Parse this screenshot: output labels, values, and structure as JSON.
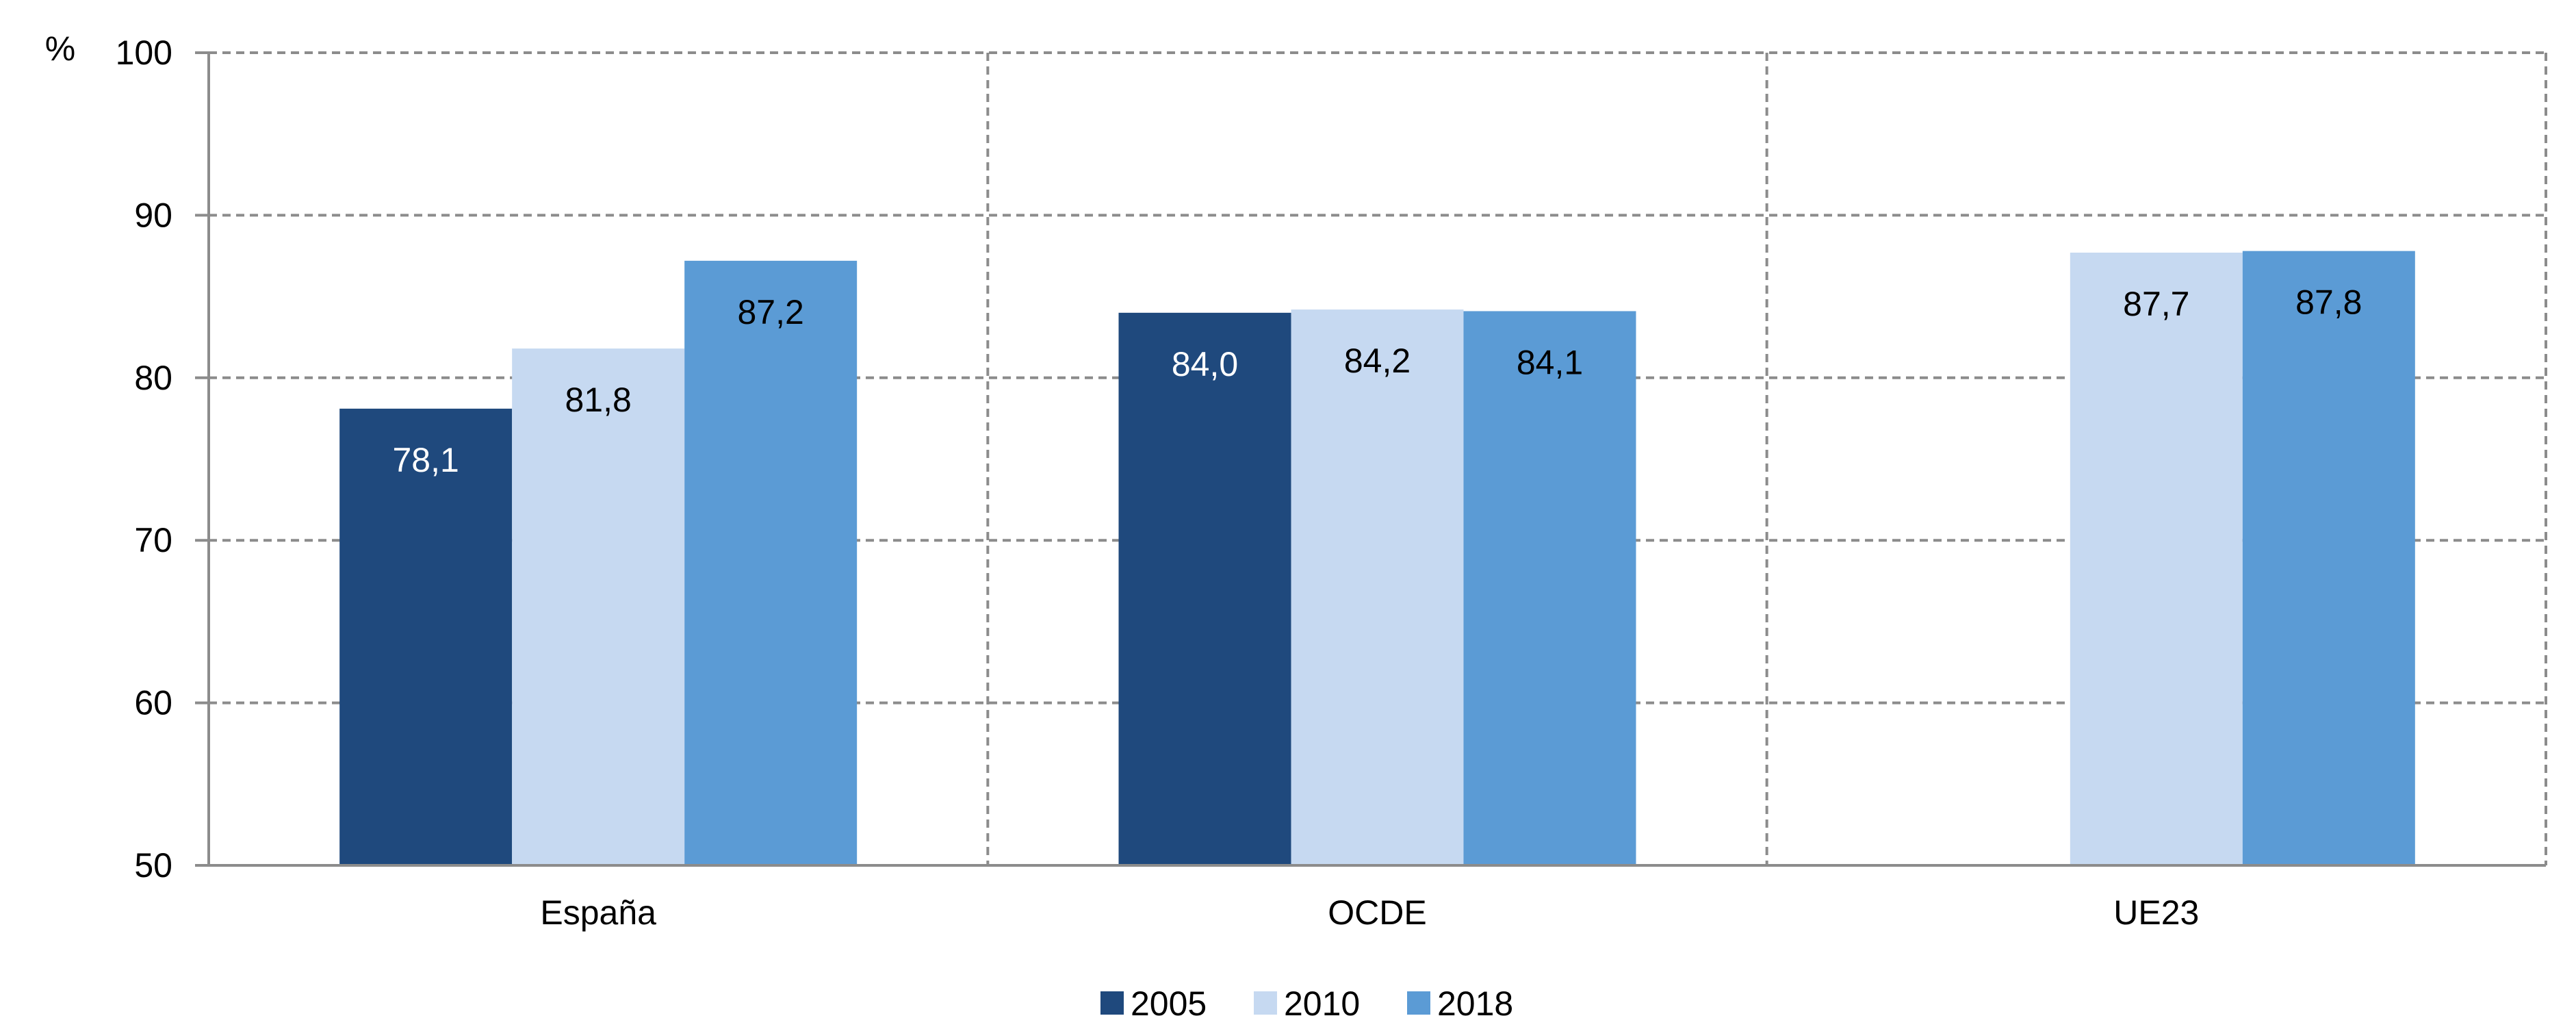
{
  "chart_data": {
    "type": "bar",
    "y_unit_label": "%",
    "categories": [
      "España",
      "OCDE",
      "UE23"
    ],
    "series": [
      {
        "name": "2005",
        "color": "#1f497d",
        "label_color": "#ffffff",
        "values": [
          78.1,
          84.0,
          null
        ],
        "labels": [
          "78,1",
          "84,0",
          ""
        ]
      },
      {
        "name": "2010",
        "color": "#c6d9f1",
        "label_color": "#000000",
        "values": [
          81.8,
          84.2,
          87.7
        ],
        "labels": [
          "81,8",
          "84,2",
          "87,7"
        ]
      },
      {
        "name": "2018",
        "color": "#5b9bd5",
        "label_color": "#000000",
        "values": [
          87.2,
          84.1,
          87.8
        ],
        "labels": [
          "87,2",
          "84,1",
          "87,8"
        ]
      }
    ],
    "ylim": [
      50,
      100
    ],
    "yticks": [
      50,
      60,
      70,
      80,
      90,
      100
    ],
    "grid": true,
    "legend_position": "bottom-center"
  }
}
